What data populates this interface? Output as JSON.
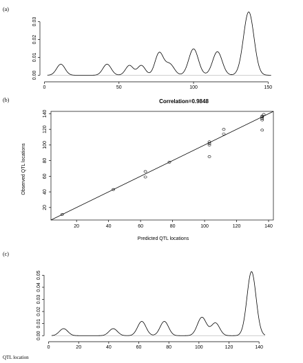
{
  "figure": {
    "footer_text": "QTL location"
  },
  "chart_data": [
    {
      "id": "a",
      "panel_label": "(a)",
      "type": "line",
      "title": "",
      "xlabel": "",
      "ylabel": "",
      "xlim": [
        -3,
        154
      ],
      "ylim": [
        -0.001,
        0.036
      ],
      "xticks": [
        0,
        50,
        100,
        150
      ],
      "yticks": [
        0.0,
        0.01,
        0.02,
        0.03
      ],
      "ytick_labels": [
        "0.00",
        "0.01",
        "0.02",
        "0.03"
      ],
      "x_range": [
        2,
        152
      ],
      "peaks": [
        {
          "mu": 11,
          "sigma": 2.8,
          "h": 0.0062
        },
        {
          "mu": 42,
          "sigma": 2.8,
          "h": 0.0062
        },
        {
          "mu": 57,
          "sigma": 2.6,
          "h": 0.0055
        },
        {
          "mu": 65,
          "sigma": 2.6,
          "h": 0.0055
        },
        {
          "mu": 77,
          "sigma": 2.8,
          "h": 0.0125
        },
        {
          "mu": 84,
          "sigma": 3.0,
          "h": 0.0062
        },
        {
          "mu": 100,
          "sigma": 3.2,
          "h": 0.0148
        },
        {
          "mu": 116,
          "sigma": 3.2,
          "h": 0.0132
        },
        {
          "mu": 137,
          "sigma": 3.5,
          "h": 0.0355
        }
      ]
    },
    {
      "id": "b",
      "panel_label": "(b)",
      "type": "scatter",
      "title": "Correlation=0.9848",
      "xlabel": "Predicted QTL locations",
      "ylabel": "Observed QTL locations",
      "xlim": [
        4,
        143
      ],
      "ylim": [
        4,
        143
      ],
      "xticks": [
        20,
        40,
        60,
        80,
        100,
        120,
        140
      ],
      "yticks": [
        20,
        40,
        60,
        80,
        100,
        120,
        140
      ],
      "fit_line": {
        "intercept": 0,
        "slope": 1.0
      },
      "points": [
        {
          "x": 11,
          "y": 11
        },
        {
          "x": 43,
          "y": 43
        },
        {
          "x": 63,
          "y": 59
        },
        {
          "x": 63,
          "y": 66
        },
        {
          "x": 78,
          "y": 78
        },
        {
          "x": 103,
          "y": 85
        },
        {
          "x": 103,
          "y": 100
        },
        {
          "x": 103,
          "y": 102
        },
        {
          "x": 103,
          "y": 104
        },
        {
          "x": 112,
          "y": 114
        },
        {
          "x": 112,
          "y": 120
        },
        {
          "x": 136,
          "y": 119
        },
        {
          "x": 136,
          "y": 132
        },
        {
          "x": 136,
          "y": 134
        },
        {
          "x": 136,
          "y": 136
        },
        {
          "x": 136,
          "y": 137
        },
        {
          "x": 137,
          "y": 139
        }
      ]
    },
    {
      "id": "c",
      "panel_label": "(c)",
      "type": "line",
      "title": "",
      "xlabel": "",
      "ylabel": "",
      "xlim": [
        -3,
        150
      ],
      "ylim": [
        -0.001,
        0.057
      ],
      "xticks": [
        0,
        20,
        40,
        60,
        80,
        100,
        120,
        140
      ],
      "yticks": [
        0.0,
        0.01,
        0.02,
        0.03,
        0.04,
        0.05
      ],
      "ytick_labels": [
        "0.00",
        "0.01",
        "0.02",
        "0.03",
        "0.04",
        "0.05"
      ],
      "x_range": [
        2,
        144
      ],
      "peaks": [
        {
          "mu": 10,
          "sigma": 2.8,
          "h": 0.0058
        },
        {
          "mu": 43,
          "sigma": 2.8,
          "h": 0.0058
        },
        {
          "mu": 62,
          "sigma": 2.8,
          "h": 0.0118
        },
        {
          "mu": 77,
          "sigma": 2.8,
          "h": 0.0118
        },
        {
          "mu": 102,
          "sigma": 3.0,
          "h": 0.0152
        },
        {
          "mu": 111,
          "sigma": 2.8,
          "h": 0.0105
        },
        {
          "mu": 135,
          "sigma": 3.0,
          "h": 0.053
        }
      ]
    }
  ]
}
